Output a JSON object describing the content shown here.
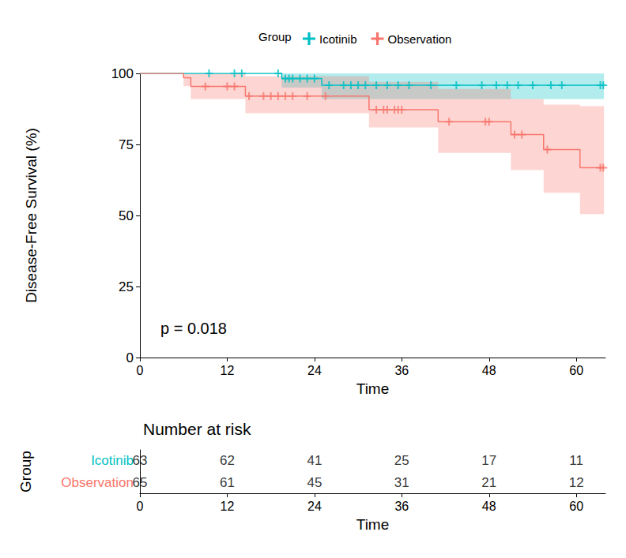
{
  "chart_data": {
    "type": "line",
    "legend_title": "Group",
    "legend": "top",
    "xlabel": "Time",
    "ylabel": "Disease-Free Survival (%)",
    "xlim": [
      0,
      64
    ],
    "xticks": [
      0,
      12,
      24,
      36,
      48,
      60
    ],
    "ylim": [
      0,
      100
    ],
    "yticks": [
      0,
      25,
      50,
      75,
      100
    ],
    "grid": false,
    "line_style": "step",
    "annotation": "p = 0.018",
    "series": [
      {
        "name": "Icotinib",
        "color": "#00BFC4",
        "marker": "plus",
        "x": [
          0,
          19.5,
          25,
          63.8
        ],
        "values": [
          100,
          98.2,
          95.8,
          95.8
        ],
        "lower": [
          100,
          95,
          91,
          91
        ],
        "upper": [
          100,
          100,
          100,
          100
        ],
        "censored": [
          9.5,
          13,
          14,
          19,
          20,
          20.5,
          21,
          22,
          23,
          24,
          26,
          28,
          29,
          30,
          31,
          32.5,
          34,
          35.5,
          37,
          40,
          43.5,
          47,
          49,
          50.5,
          52,
          54,
          56.5,
          58,
          63.3,
          63.7
        ]
      },
      {
        "name": "Observation",
        "color": "#F8766D",
        "marker": "plus",
        "x": [
          0,
          6,
          7,
          14.5,
          31.5,
          41,
          51,
          55.5,
          60.5,
          63.8
        ],
        "values": [
          100,
          98.5,
          95.4,
          92,
          87.2,
          83,
          78.5,
          73.2,
          66.8,
          66.8
        ],
        "lower": [
          100,
          95.5,
          91,
          86,
          81,
          72,
          66,
          58,
          50.5,
          50.5
        ],
        "upper": [
          100,
          100,
          100,
          99,
          97,
          94.5,
          91,
          89,
          88.5,
          88.5
        ],
        "censored": [
          9,
          12,
          13,
          15,
          17,
          18,
          19,
          20,
          21,
          23,
          25.5,
          32.5,
          33.5,
          34,
          35,
          35.5,
          36,
          42.5,
          47.5,
          48,
          51.5,
          52.5,
          56,
          63.3,
          63.7
        ]
      }
    ],
    "risk_table": {
      "title": "Number at risk",
      "ylabel": "Group",
      "xlabel": "Time",
      "x": [
        0,
        12,
        24,
        36,
        48,
        60
      ],
      "rows": [
        {
          "name": "Icotinib",
          "color": "#00BFC4",
          "values": [
            63,
            62,
            41,
            25,
            17,
            11
          ]
        },
        {
          "name": "Observation",
          "color": "#F8766D",
          "values": [
            65,
            61,
            45,
            31,
            21,
            12
          ]
        }
      ]
    }
  }
}
